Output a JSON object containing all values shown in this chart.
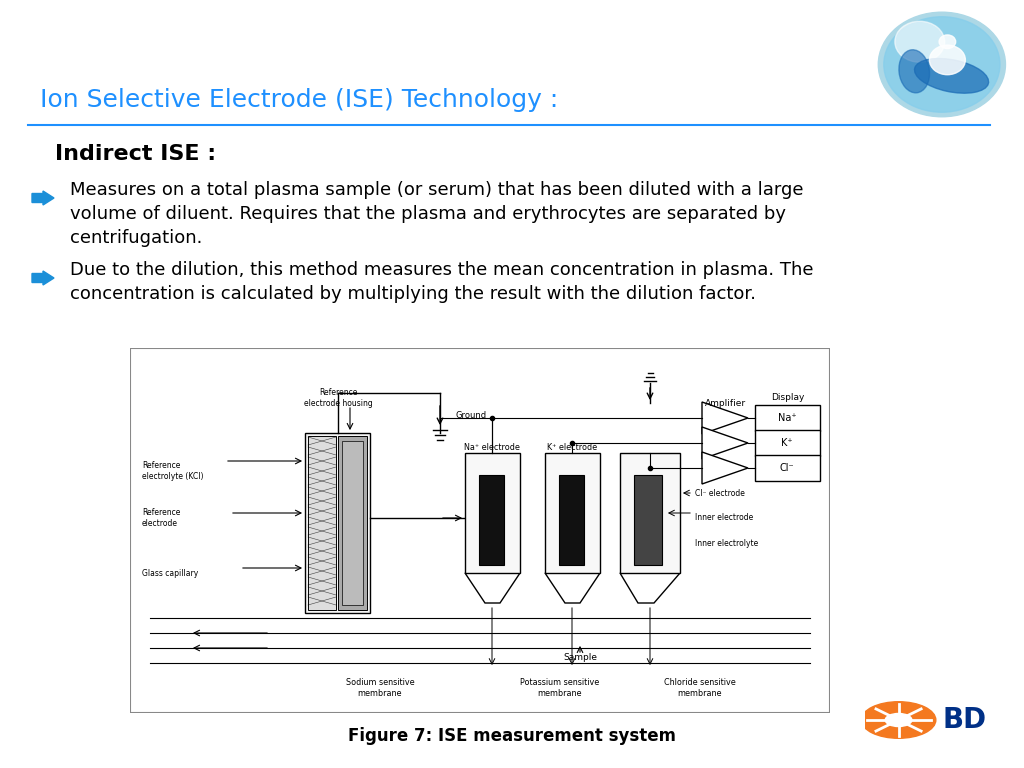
{
  "title": "Ion Selective Electrode (ISE) Technology :",
  "title_color": "#1E90FF",
  "subtitle": "Indirect ISE :",
  "subtitle_color": "#000000",
  "bullet1_line1": "Measures on a total plasma sample (or serum) that has been diluted with a large",
  "bullet1_line2": "volume of diluent. Requires that the plasma and erythrocytes are separated by",
  "bullet1_line3": "centrifugation.",
  "bullet2_line1": "Due to the dilution, this method measures the mean concentration in plasma. The",
  "bullet2_line2": "concentration is calculated by multiplying the result with the dilution factor.",
  "figure_caption": "Figure 7: ISE measurement system",
  "bg_color": "#FFFFFF",
  "text_color": "#000000",
  "arrow_color": "#1B8FD8",
  "separator_color": "#1E90FF"
}
